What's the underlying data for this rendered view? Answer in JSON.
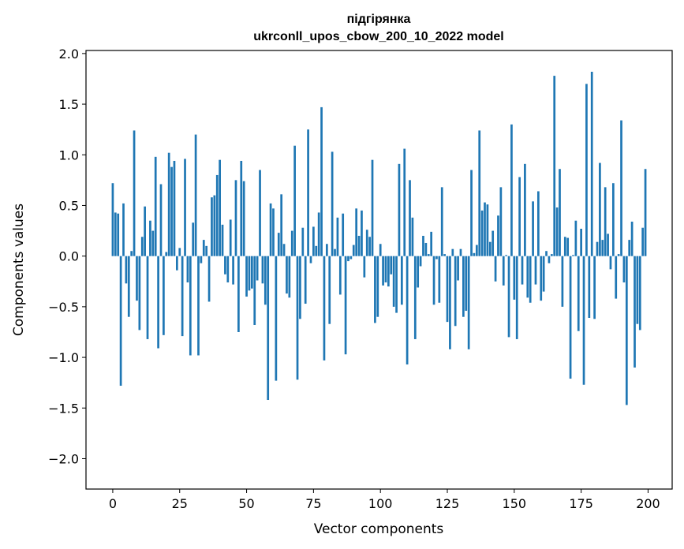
{
  "chart_data": {
    "type": "bar",
    "title_lines": [
      "підгірянка",
      "ukrconll_upos_cbow_200_10_2022 model"
    ],
    "xlabel": "Vector components",
    "ylabel": "Components values",
    "xlim": [
      -10,
      209
    ],
    "ylim": [
      -2.3,
      2.03
    ],
    "xticks": [
      0,
      25,
      50,
      75,
      100,
      125,
      150,
      175,
      200
    ],
    "xtick_labels": [
      "0",
      "25",
      "50",
      "75",
      "100",
      "125",
      "150",
      "175",
      "200"
    ],
    "yticks": [
      2.0,
      1.5,
      1.0,
      0.5,
      0.0,
      -0.5,
      -1.0,
      -1.5,
      -2.0
    ],
    "ytick_labels": [
      "2.0",
      "1.5",
      "1.0",
      "0.5",
      "0.0",
      "−0.5",
      "−1.0",
      "−1.5",
      "−2.0"
    ],
    "bar_color": "#1f77b4",
    "grid": false,
    "x": [
      0,
      1,
      2,
      3,
      4,
      5,
      6,
      7,
      8,
      9,
      10,
      11,
      12,
      13,
      14,
      15,
      16,
      17,
      18,
      19,
      20,
      21,
      22,
      23,
      24,
      25,
      26,
      27,
      28,
      29,
      30,
      31,
      32,
      33,
      34,
      35,
      36,
      37,
      38,
      39,
      40,
      41,
      42,
      43,
      44,
      45,
      46,
      47,
      48,
      49,
      50,
      51,
      52,
      53,
      54,
      55,
      56,
      57,
      58,
      59,
      60,
      61,
      62,
      63,
      64,
      65,
      66,
      67,
      68,
      69,
      70,
      71,
      72,
      73,
      74,
      75,
      76,
      77,
      78,
      79,
      80,
      81,
      82,
      83,
      84,
      85,
      86,
      87,
      88,
      89,
      90,
      91,
      92,
      93,
      94,
      95,
      96,
      97,
      98,
      99,
      100,
      101,
      102,
      103,
      104,
      105,
      106,
      107,
      108,
      109,
      110,
      111,
      112,
      113,
      114,
      115,
      116,
      117,
      118,
      119,
      120,
      121,
      122,
      123,
      124,
      125,
      126,
      127,
      128,
      129,
      130,
      131,
      132,
      133,
      134,
      135,
      136,
      137,
      138,
      139,
      140,
      141,
      142,
      143,
      144,
      145,
      146,
      147,
      148,
      149,
      150,
      151,
      152,
      153,
      154,
      155,
      156,
      157,
      158,
      159,
      160,
      161,
      162,
      163,
      164,
      165,
      166,
      167,
      168,
      169,
      170,
      171,
      172,
      173,
      174,
      175,
      176,
      177,
      178,
      179,
      180,
      181,
      182,
      183,
      184,
      185,
      186,
      187,
      188,
      189,
      190,
      191,
      192,
      193,
      194,
      195,
      196,
      197,
      198,
      199
    ],
    "values": [
      0.72,
      0.43,
      0.42,
      -1.28,
      0.52,
      -0.27,
      -0.6,
      0.05,
      1.24,
      -0.44,
      -0.73,
      0.19,
      0.49,
      -0.82,
      0.35,
      0.25,
      0.98,
      -0.91,
      0.71,
      -0.78,
      0.04,
      1.02,
      0.88,
      0.94,
      -0.14,
      0.08,
      -0.79,
      0.96,
      -0.26,
      -0.98,
      0.33,
      1.2,
      -0.98,
      -0.07,
      0.16,
      0.1,
      -0.45,
      0.58,
      0.6,
      0.8,
      0.95,
      0.31,
      -0.18,
      -0.26,
      0.36,
      -0.28,
      0.75,
      -0.75,
      0.94,
      0.74,
      -0.4,
      -0.34,
      -0.32,
      -0.68,
      -0.24,
      0.85,
      -0.27,
      -0.48,
      -1.42,
      0.52,
      0.47,
      -1.23,
      0.23,
      0.61,
      0.12,
      -0.37,
      -0.41,
      0.25,
      1.09,
      -1.22,
      -0.62,
      0.28,
      -0.47,
      1.25,
      -0.07,
      0.29,
      0.1,
      0.43,
      1.47,
      -1.03,
      0.12,
      -0.67,
      1.03,
      0.07,
      0.38,
      -0.38,
      0.42,
      -0.97,
      -0.05,
      -0.03,
      0.11,
      0.47,
      0.2,
      0.45,
      -0.21,
      0.26,
      0.19,
      0.95,
      -0.66,
      -0.6,
      0.12,
      -0.29,
      -0.26,
      -0.3,
      -0.18,
      -0.5,
      -0.56,
      0.91,
      -0.48,
      1.06,
      -1.07,
      0.75,
      0.38,
      -0.82,
      -0.31,
      -0.1,
      0.2,
      0.13,
      0.02,
      0.24,
      -0.48,
      -0.03,
      -0.46,
      0.68,
      0.02,
      -0.65,
      -0.92,
      0.07,
      -0.69,
      -0.24,
      0.07,
      -0.6,
      -0.54,
      -0.92,
      0.85,
      0.03,
      0.11,
      1.24,
      0.45,
      0.53,
      0.51,
      0.14,
      0.25,
      -0.25,
      0.4,
      0.68,
      -0.29,
      0.01,
      -0.8,
      1.3,
      -0.43,
      -0.82,
      0.78,
      -0.28,
      0.91,
      -0.41,
      -0.46,
      0.54,
      -0.28,
      0.64,
      -0.44,
      -0.35,
      0.05,
      -0.07,
      0.02,
      1.78,
      0.48,
      0.86,
      -0.5,
      0.19,
      0.18,
      -1.21,
      0.01,
      0.35,
      -0.74,
      0.27,
      -1.27,
      1.7,
      -0.61,
      1.82,
      -0.62,
      0.14,
      0.92,
      0.16,
      0.68,
      0.22,
      -0.13,
      0.72,
      -0.42,
      0.02,
      1.34,
      -0.26,
      -1.47,
      0.16,
      0.34,
      -1.1,
      -0.67,
      -0.73,
      0.28,
      0.86
    ]
  }
}
